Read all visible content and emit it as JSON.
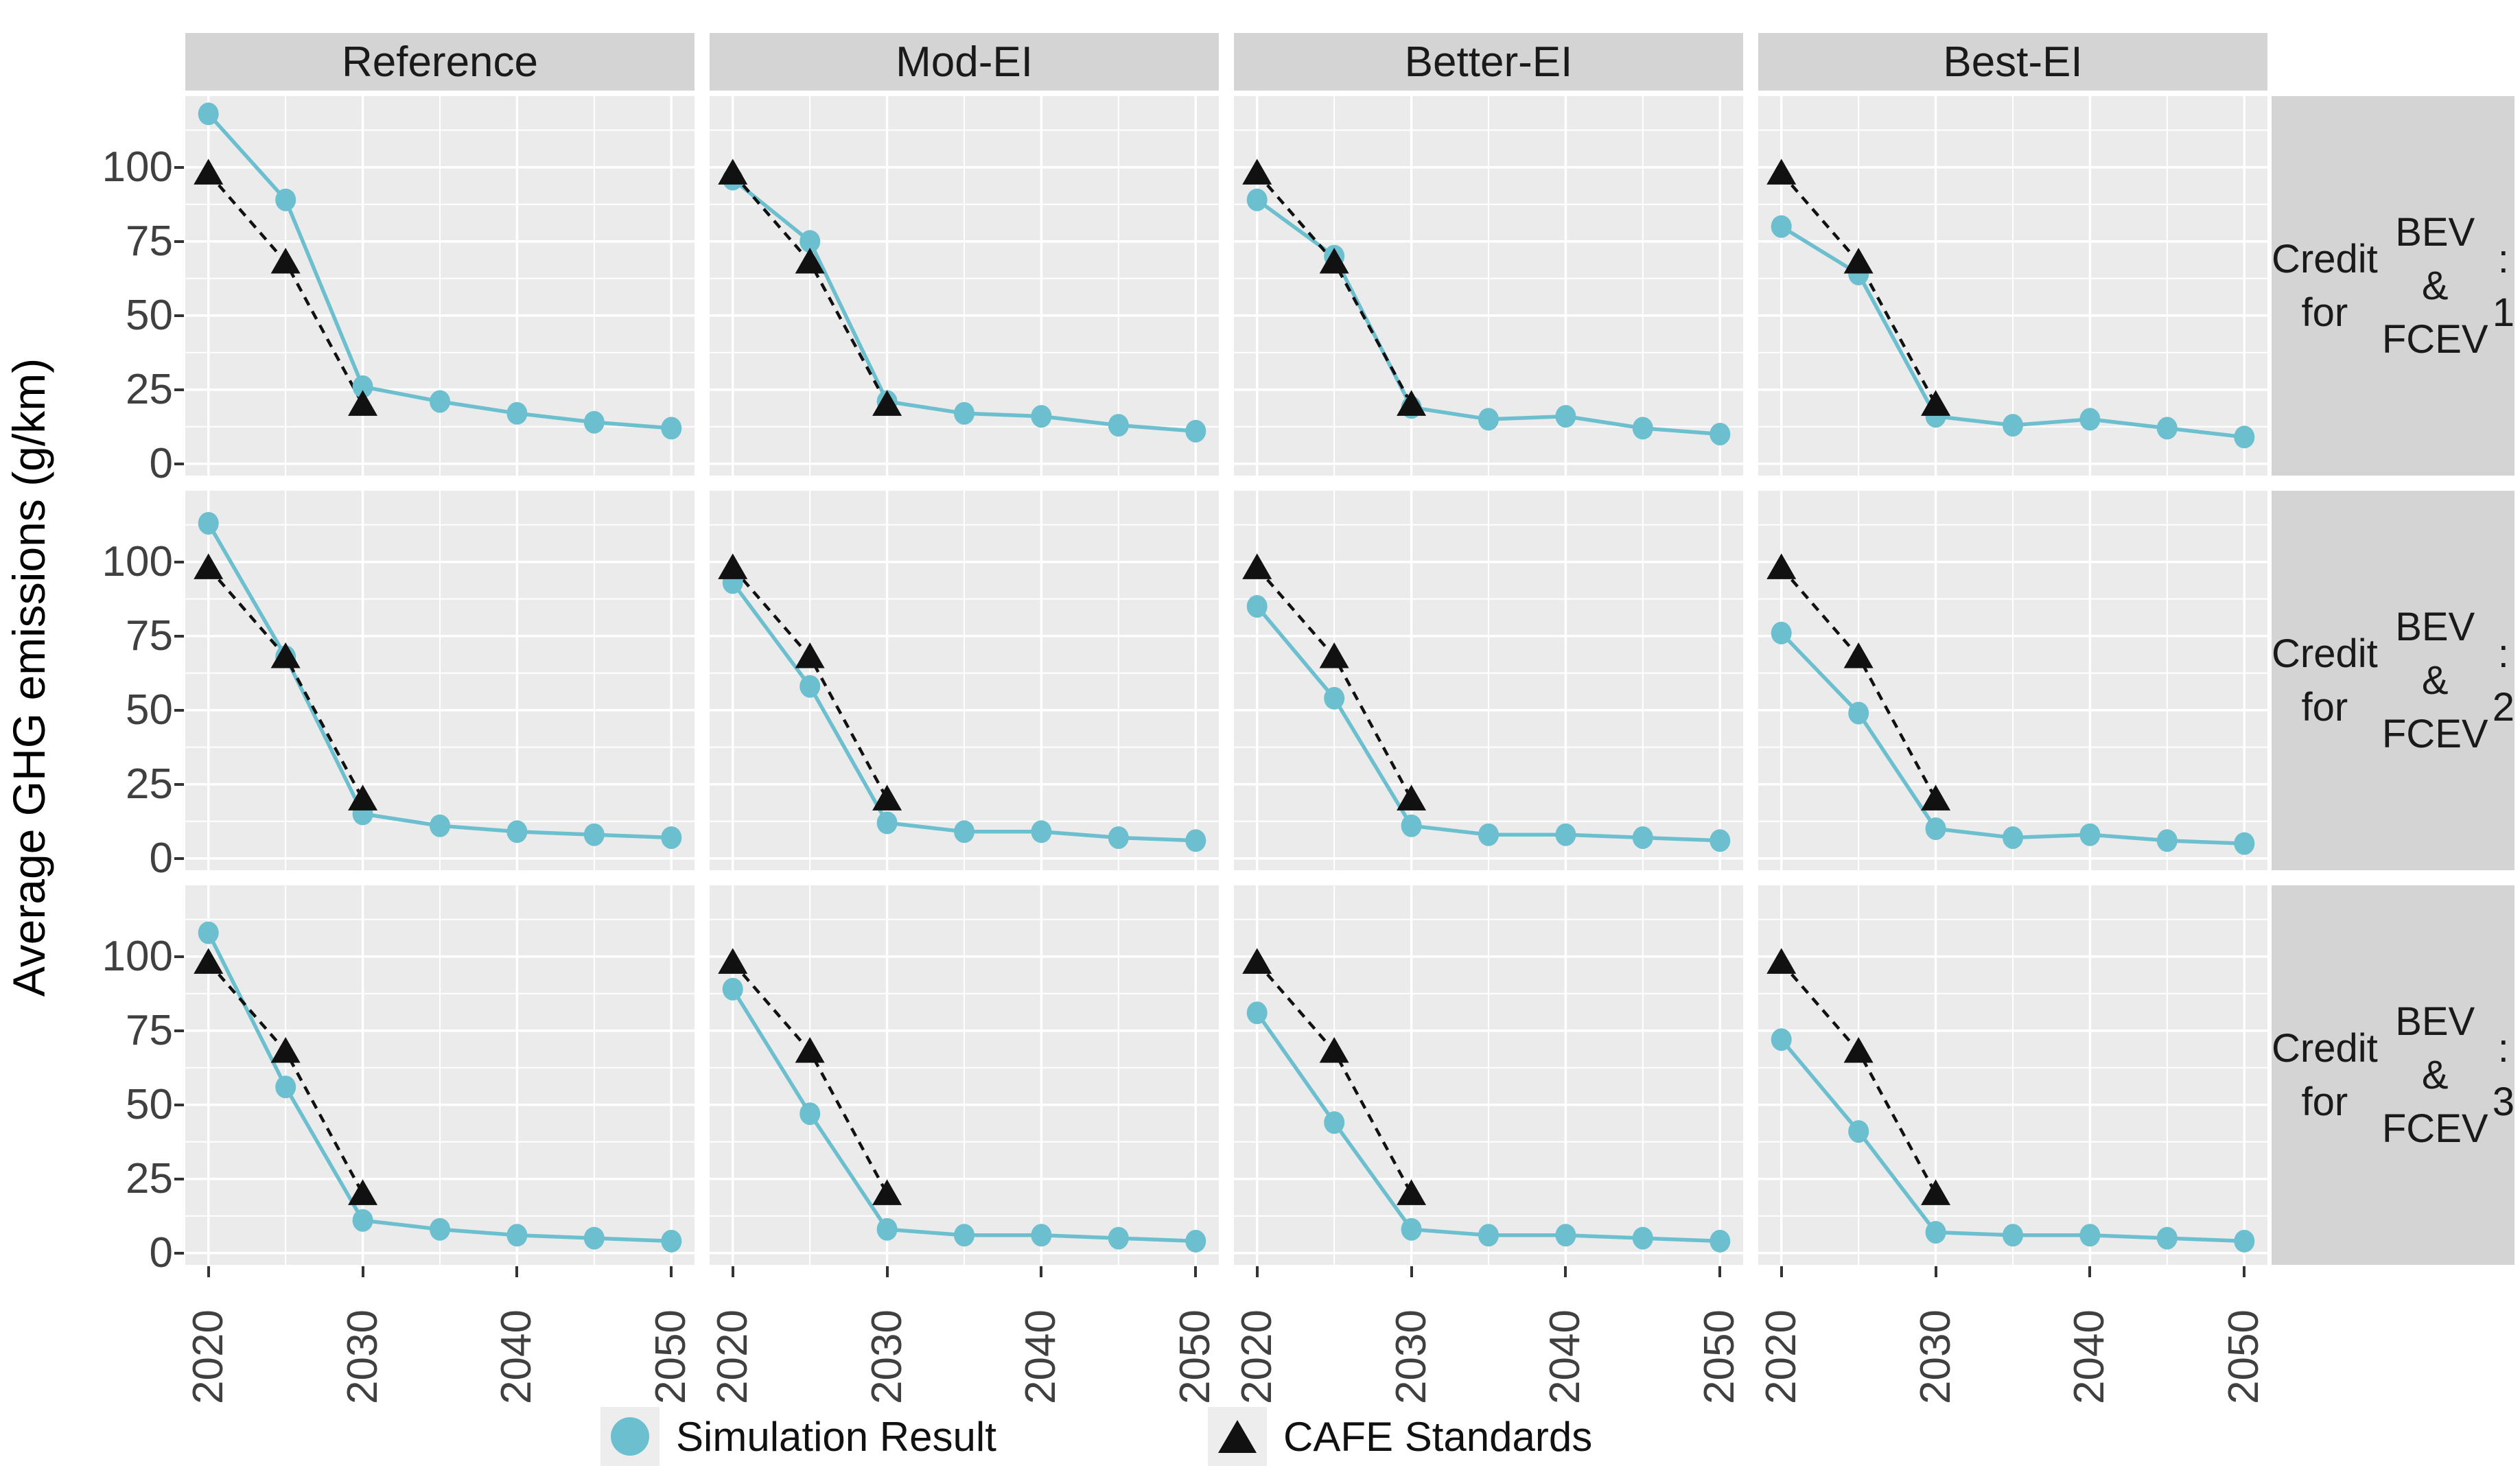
{
  "chart_data": {
    "type": "line",
    "ylabel": "Average GHG emissions (g/km)",
    "x": [
      2020,
      2025,
      2030,
      2035,
      2040,
      2045,
      2050
    ],
    "x_tick_labels": [
      "2020",
      "2030",
      "2040",
      "2050"
    ],
    "y_tick_labels": [
      "100",
      "75",
      "50",
      "25",
      "0"
    ],
    "y_ticks": [
      100,
      75,
      50,
      25,
      0
    ],
    "x_major_gridlines": [
      2020,
      2030,
      2040,
      2050
    ],
    "x_minor_gridlines": [
      2025,
      2035,
      2045
    ],
    "y_major_gridlines": [
      0,
      25,
      50,
      75,
      100
    ],
    "y_minor_gridlines": [
      12.5,
      37.5,
      62.5,
      87.5,
      112.5
    ],
    "x_range": [
      2018.5,
      2051.5
    ],
    "y_range": [
      -4,
      124
    ],
    "grid": "on",
    "legend_position": "bottom",
    "facet_columns": [
      "Reference",
      "Mod-EI",
      "Better-EI",
      "Best-EI"
    ],
    "facet_rows": [
      "Credit for BEV & FCEV : 1",
      "Credit for BEV & FCEV : 2",
      "Credit for BEV & FCEV : 3"
    ],
    "cafe_standards": {
      "x": [
        2020,
        2025,
        2030
      ],
      "values": [
        98,
        68,
        20
      ]
    },
    "rows": [
      {
        "label_lines": [
          "Credit for",
          "BEV & FCEV",
          ": 1"
        ],
        "panels": [
          {
            "column": "Reference",
            "simulation": [
              118,
              89,
              26,
              21,
              17,
              14,
              12
            ]
          },
          {
            "column": "Mod-EI",
            "simulation": [
              96,
              75,
              21,
              17,
              16,
              13,
              11
            ]
          },
          {
            "column": "Better-EI",
            "simulation": [
              89,
              70,
              19,
              15,
              16,
              12,
              10
            ]
          },
          {
            "column": "Best-EI",
            "simulation": [
              80,
              64,
              16,
              13,
              15,
              12,
              9
            ]
          }
        ]
      },
      {
        "label_lines": [
          "Credit for",
          "BEV & FCEV",
          ": 2"
        ],
        "panels": [
          {
            "column": "Reference",
            "simulation": [
              113,
              68,
              15,
              11,
              9,
              8,
              7
            ]
          },
          {
            "column": "Mod-EI",
            "simulation": [
              93,
              58,
              12,
              9,
              9,
              7,
              6
            ]
          },
          {
            "column": "Better-EI",
            "simulation": [
              85,
              54,
              11,
              8,
              8,
              7,
              6
            ]
          },
          {
            "column": "Best-EI",
            "simulation": [
              76,
              49,
              10,
              7,
              8,
              6,
              5
            ]
          }
        ]
      },
      {
        "label_lines": [
          "Credit for",
          "BEV & FCEV",
          ": 3"
        ],
        "panels": [
          {
            "column": "Reference",
            "simulation": [
              108,
              56,
              11,
              8,
              6,
              5,
              4
            ]
          },
          {
            "column": "Mod-EI",
            "simulation": [
              89,
              47,
              8,
              6,
              6,
              5,
              4
            ]
          },
          {
            "column": "Better-EI",
            "simulation": [
              81,
              44,
              8,
              6,
              6,
              5,
              4
            ]
          },
          {
            "column": "Best-EI",
            "simulation": [
              72,
              41,
              7,
              6,
              6,
              5,
              4
            ]
          }
        ]
      }
    ],
    "legend": [
      {
        "marker": "circle",
        "label": "Simulation Result"
      },
      {
        "marker": "triangle",
        "label": "CAFE Standards"
      }
    ],
    "colors": {
      "simulation": "#6CBFCE",
      "cafe": "#111111",
      "panel_bg": "#EBEBEB",
      "strip_bg": "#D4D4D4",
      "gridline": "#FFFFFF",
      "axis_text": "#404040"
    }
  }
}
